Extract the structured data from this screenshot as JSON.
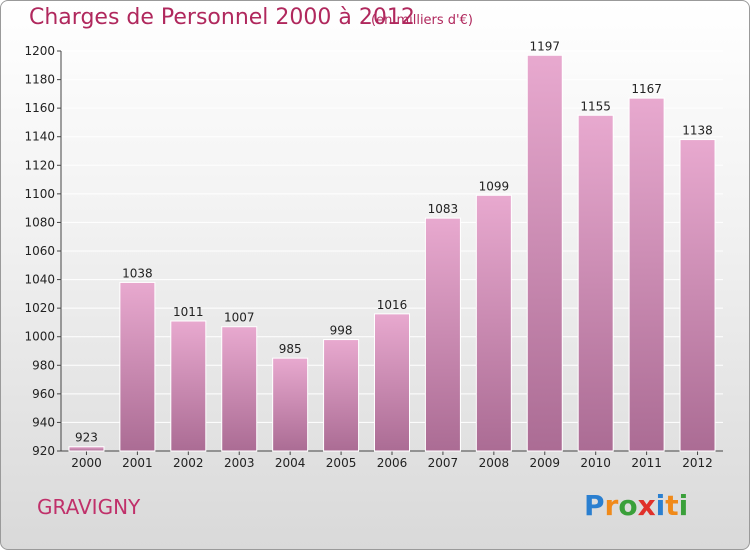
{
  "header": {
    "title": "Charges de Personnel 2000 à 2012",
    "subtitle": "(en milliers d'€)"
  },
  "footer": {
    "commune": "GRAVIGNY",
    "logo": [
      "P",
      "r",
      "o",
      "x",
      "i",
      "t",
      "i"
    ]
  },
  "colors": {
    "title": "#b0285d",
    "bar_light": "#e8a9cf",
    "bar_dark": "#ab6c94",
    "logo": [
      "#2a7fd0",
      "#f08a1a",
      "#3aa03a",
      "#e0302a",
      "#2a7fd0",
      "#f08a1a",
      "#3aa03a"
    ]
  },
  "chart_data": {
    "type": "bar",
    "title": "Charges de Personnel 2000 à 2012",
    "subtitle": "(en milliers d'€)",
    "categories": [
      "2000",
      "2001",
      "2002",
      "2003",
      "2004",
      "2005",
      "2006",
      "2007",
      "2008",
      "2009",
      "2010",
      "2011",
      "2012"
    ],
    "values": [
      923,
      1038,
      1011,
      1007,
      985,
      998,
      1016,
      1083,
      1099,
      1197,
      1155,
      1167,
      1138
    ],
    "ylim": [
      920,
      1200
    ],
    "yticks": [
      920,
      940,
      960,
      980,
      1000,
      1020,
      1040,
      1060,
      1080,
      1100,
      1120,
      1140,
      1160,
      1180,
      1200
    ],
    "grid": true,
    "data_labels": true
  }
}
